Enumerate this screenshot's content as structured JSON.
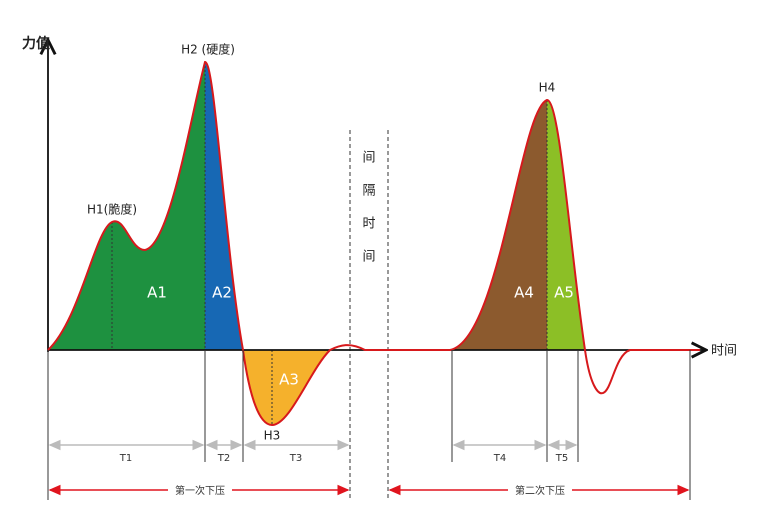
{
  "axes": {
    "y_label": "力值",
    "x_label": "时间"
  },
  "peaks": {
    "h1": "H1(脆度)",
    "h2": "H2 (硬度)",
    "h3": "H3",
    "h4": "H4"
  },
  "areas": [
    "A1",
    "A2",
    "A3",
    "A4",
    "A5"
  ],
  "interval": [
    "间",
    "隔",
    "时",
    "间"
  ],
  "durations": [
    "T1",
    "T2",
    "T3",
    "T4",
    "T5"
  ],
  "phases": [
    "第一次下压",
    "第二次下压"
  ]
}
